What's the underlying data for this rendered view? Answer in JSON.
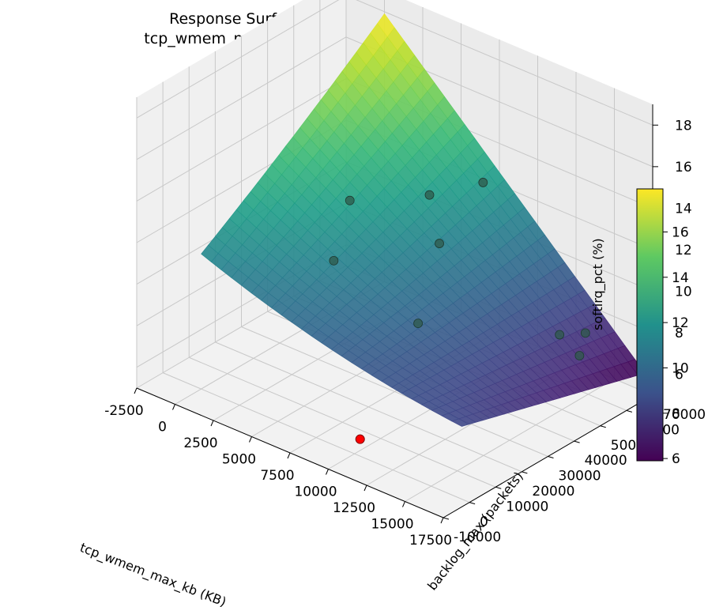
{
  "chart_data": {
    "type": "surface3d",
    "title": "Response Surface: softirq_pct",
    "subtitle": "tcp_wmem_max_kb vs backlog_max",
    "xlabel": "tcp_wmem_max_kb (KB)",
    "ylabel": "backlog_max (packets)",
    "zlabel": "softirq_pct (%)",
    "xlim": [
      -2500,
      17500
    ],
    "ylim": [
      -10000,
      70000
    ],
    "zlim": [
      5,
      19
    ],
    "x_ticks": [
      "-2500",
      "0",
      "2500",
      "5000",
      "7500",
      "10000",
      "12500",
      "15000",
      "17500"
    ],
    "y_ticks": [
      "-10000",
      "0",
      "10000",
      "20000",
      "30000",
      "40000",
      "50000",
      "60000",
      "70000"
    ],
    "z_ticks": [
      "6",
      "8",
      "10",
      "12",
      "14",
      "16",
      "18"
    ],
    "colormap": "viridis",
    "colorbar": {
      "min": 5.9,
      "max": 17.9,
      "ticks": [
        "6",
        "8",
        "10",
        "12",
        "14",
        "16"
      ]
    },
    "surface_corners": {
      "x0_y0": 11.5,
      "x_max_y0": 8.5,
      "x0_y_max": 17.9,
      "x_max_y_max": 5.9
    },
    "observations": [
      {
        "x": 1500,
        "y": 48000,
        "z": 11.0
      },
      {
        "x": 2500,
        "y": 36000,
        "z": 9.3
      },
      {
        "x": 5500,
        "y": 55000,
        "z": 12.0
      },
      {
        "x": 7000,
        "y": 50000,
        "z": 10.5
      },
      {
        "x": 7800,
        "y": 62000,
        "z": 12.8
      },
      {
        "x": 8000,
        "y": 36000,
        "z": 8.0
      },
      {
        "x": 14500,
        "y": 52000,
        "z": 8.3
      },
      {
        "x": 15500,
        "y": 56000,
        "z": 8.4
      },
      {
        "x": 15800,
        "y": 52000,
        "z": 7.7
      }
    ],
    "best_point": {
      "x": 9000,
      "y": 8000,
      "z": 4.8,
      "color": "#ff0000"
    },
    "grid": true
  }
}
